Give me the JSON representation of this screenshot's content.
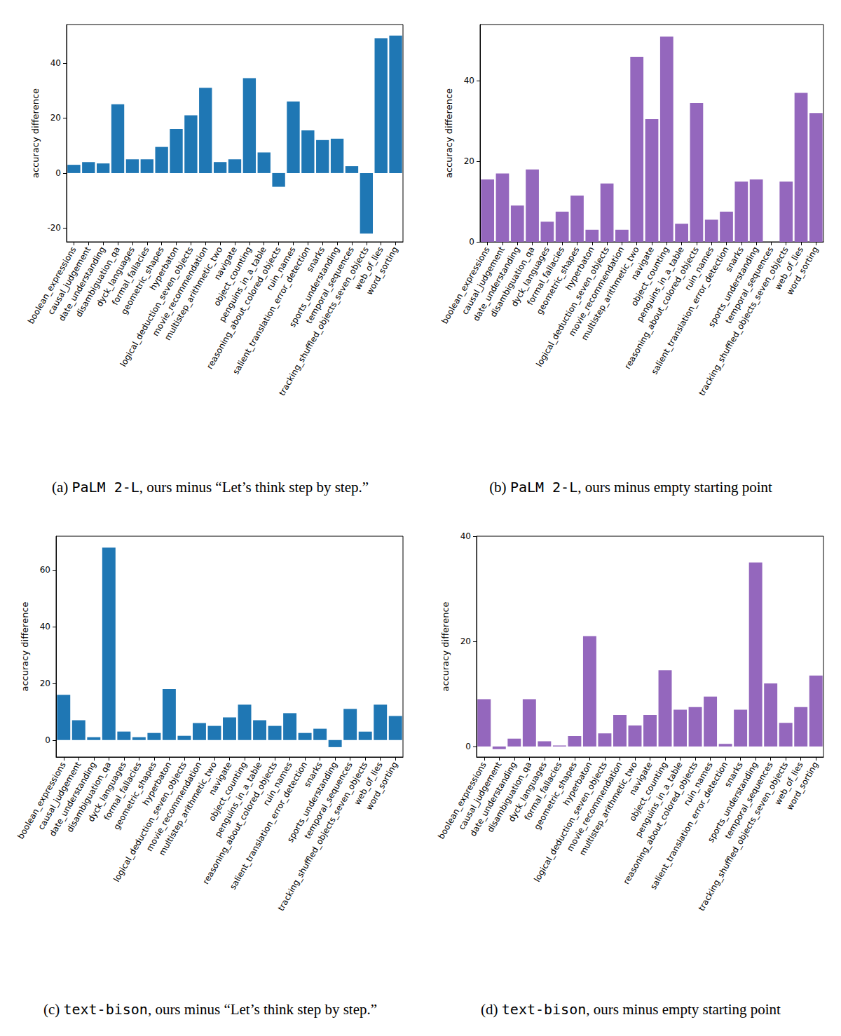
{
  "chart_data": [
    {
      "type": "bar",
      "caption_label": "(a)",
      "caption_model": "PaLM 2-L",
      "caption_text": ", ours minus “Let’s think step by step.”",
      "y_label": "accuracy difference",
      "categories": [
        "boolean_expressions",
        "causal_judgement",
        "date_understanding",
        "disambiguation_qa",
        "dyck_languages",
        "formal_fallacies",
        "geometric_shapes",
        "hyperbaton",
        "logical_deduction_seven_objects",
        "movie_recommendation",
        "multistep_arithmetic_two",
        "navigate",
        "object_counting",
        "penguins_in_a_table",
        "reasoning_about_colored_objects",
        "ruin_names",
        "salient_translation_error_detection",
        "snarks",
        "sports_understanding",
        "temporal_sequences",
        "tracking_shuffled_objects_seven_objects",
        "web_of_lies",
        "word_sorting"
      ],
      "values": [
        3,
        4,
        3.5,
        25,
        5,
        5,
        9.5,
        16,
        21,
        31,
        4,
        5,
        34.5,
        7.5,
        -5,
        26,
        15.5,
        12,
        12.5,
        2.5,
        -22,
        49,
        50
      ],
      "color": "#1f77b4",
      "ylim": [
        -25,
        54
      ],
      "yticks": [
        -20,
        0,
        20,
        40
      ],
      "grid": false
    },
    {
      "type": "bar",
      "caption_label": "(b)",
      "caption_model": "PaLM 2-L",
      "caption_text": ", ours minus empty starting point",
      "y_label": "accuracy difference",
      "categories": [
        "boolean_expressions",
        "causal_judgement",
        "date_understanding",
        "disambiguation_qa",
        "dyck_languages",
        "formal_fallacies",
        "geometric_shapes",
        "hyperbaton",
        "logical_deduction_seven_objects",
        "movie_recommendation",
        "multistep_arithmetic_two",
        "navigate",
        "object_counting",
        "penguins_in_a_table",
        "reasoning_about_colored_objects",
        "ruin_names",
        "salient_translation_error_detection",
        "snarks",
        "sports_understanding",
        "temporal_sequences",
        "tracking_shuffled_objects_seven_objects",
        "web_of_lies",
        "word_sorting"
      ],
      "values": [
        15.5,
        17,
        9,
        18,
        5,
        7.5,
        11.5,
        3,
        14.5,
        3,
        46,
        30.5,
        51,
        4.5,
        34.5,
        5.5,
        7.5,
        15,
        15.5,
        0,
        15,
        37,
        32
      ],
      "color": "#9467bd",
      "ylim": [
        0,
        54
      ],
      "yticks": [
        0,
        20,
        40
      ],
      "grid": false
    },
    {
      "type": "bar",
      "caption_label": "(c)",
      "caption_model": "text-bison",
      "caption_text": ", ours minus “Let’s think step by step.”",
      "y_label": "accuracy difference",
      "categories": [
        "boolean_expressions",
        "causal_judgement",
        "date_understanding",
        "disambiguation_qa",
        "dyck_languages",
        "formal_fallacies",
        "geometric_shapes",
        "hyperbaton",
        "logical_deduction_seven_objects",
        "movie_recommendation",
        "multistep_arithmetic_two",
        "navigate",
        "object_counting",
        "penguins_in_a_table",
        "reasoning_about_colored_objects",
        "ruin_names",
        "salient_translation_error_detection",
        "snarks",
        "sports_understanding",
        "temporal_sequences",
        "tracking_shuffled_objects_seven_objects",
        "web_of_lies",
        "word_sorting"
      ],
      "values": [
        16,
        7,
        1,
        68,
        3,
        1,
        2.5,
        18,
        1.5,
        6,
        5,
        8,
        12.5,
        7,
        5,
        9.5,
        2.5,
        4,
        -2.5,
        11,
        3,
        12.5,
        8.5
      ],
      "color": "#1f77b4",
      "ylim": [
        -6,
        72
      ],
      "yticks": [
        0,
        20,
        40,
        60
      ],
      "grid": false
    },
    {
      "type": "bar",
      "caption_label": "(d)",
      "caption_model": "text-bison",
      "caption_text": ", ours minus empty starting point",
      "y_label": "accuracy difference",
      "categories": [
        "boolean_expressions",
        "causal_judgement",
        "date_understanding",
        "disambiguation_qa",
        "dyck_languages",
        "formal_fallacies",
        "geometric_shapes",
        "hyperbaton",
        "logical_deduction_seven_objects",
        "movie_recommendation",
        "multistep_arithmetic_two",
        "navigate",
        "object_counting",
        "penguins_in_a_table",
        "reasoning_about_colored_objects",
        "ruin_names",
        "salient_translation_error_detection",
        "snarks",
        "sports_understanding",
        "temporal_sequences",
        "tracking_shuffled_objects_seven_objects",
        "web_of_lies",
        "word_sorting"
      ],
      "values": [
        9,
        -0.5,
        1.5,
        9,
        1,
        0.2,
        2,
        21,
        2.5,
        6,
        4,
        6,
        14.5,
        7,
        7.5,
        9.5,
        0.5,
        7,
        35,
        12,
        4.5,
        7.5,
        13.5
      ],
      "color": "#9467bd",
      "ylim": [
        -2,
        40
      ],
      "yticks": [
        0,
        20,
        40
      ],
      "grid": false
    }
  ]
}
